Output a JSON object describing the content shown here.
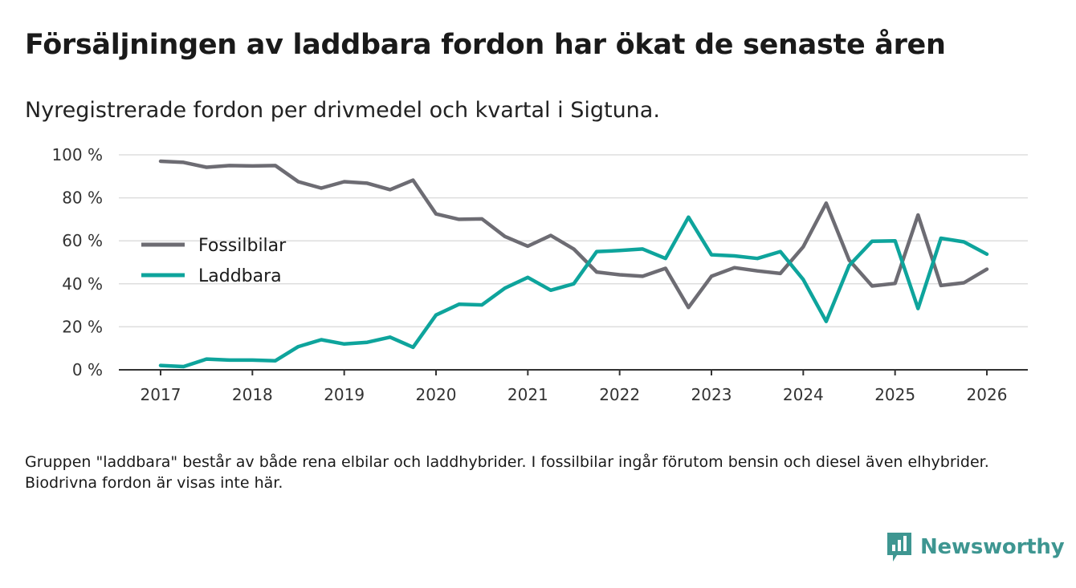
{
  "title": "Försäljningen av laddbara fordon har ökat de senaste åren",
  "subtitle": "Nyregistrerade fordon per drivmedel och kvartal i Sigtuna.",
  "footnote": "Gruppen \"laddbara\" består av både rena elbilar och laddhybrider. I fossilbilar ingår förutom bensin och diesel även elhybrider. Biodrivna fordon är visas inte här.",
  "brand": {
    "name": "Newsworthy",
    "icon": "newsworthy-logo-icon",
    "color": "#3e9691"
  },
  "chart_data": {
    "type": "line",
    "title": "Försäljningen av laddbara fordon har ökat de senaste åren",
    "xlabel": "",
    "ylabel": "",
    "ylim": [
      0,
      100
    ],
    "xlim": [
      2017,
      2026
    ],
    "grid": true,
    "legend_position": "left",
    "x_ticks": [
      2017,
      2018,
      2019,
      2020,
      2021,
      2022,
      2023,
      2024,
      2025,
      2026
    ],
    "y_ticks": [
      0,
      20,
      40,
      60,
      80,
      100
    ],
    "y_tick_labels": [
      "0 %",
      "20 %",
      "40 %",
      "60 %",
      "80 %",
      "100 %"
    ],
    "x": [
      2017.0,
      2017.25,
      2017.5,
      2017.75,
      2018.0,
      2018.25,
      2018.5,
      2018.75,
      2019.0,
      2019.25,
      2019.5,
      2019.75,
      2020.0,
      2020.25,
      2020.5,
      2020.75,
      2021.0,
      2021.25,
      2021.5,
      2021.75,
      2022.0,
      2022.25,
      2022.5,
      2022.75,
      2023.0,
      2023.25,
      2023.5,
      2023.75,
      2024.0,
      2024.25,
      2024.5,
      2024.75,
      2025.0,
      2025.25,
      2025.5,
      2025.75,
      2026.0
    ],
    "series": [
      {
        "name": "Fossilbilar",
        "color": "#6d6c73",
        "values": [
          97,
          96.5,
          94.2,
          95,
          94.8,
          95,
          87.5,
          84.5,
          87.5,
          86.8,
          83.8,
          88.2,
          72.5,
          70,
          70.2,
          62,
          57.5,
          62.5,
          56.2,
          45.5,
          44.2,
          43.5,
          47.2,
          29,
          43.5,
          47.5,
          46,
          44.8,
          57.2,
          77.5,
          51,
          39,
          40.2,
          72,
          39.2,
          40.5,
          46.8
        ]
      },
      {
        "name": "Laddbara",
        "color": "#0ea49c",
        "values": [
          2,
          1.5,
          5,
          4.5,
          4.5,
          4.2,
          10.8,
          14,
          12,
          12.8,
          15.2,
          10.5,
          25.5,
          30.5,
          30.2,
          38,
          43,
          37,
          40,
          55,
          55.5,
          56.2,
          51.8,
          71,
          53.5,
          53,
          51.8,
          55,
          42,
          22.5,
          48.5,
          59.8,
          60,
          28.5,
          61.2,
          59.5,
          53.8
        ]
      }
    ]
  }
}
